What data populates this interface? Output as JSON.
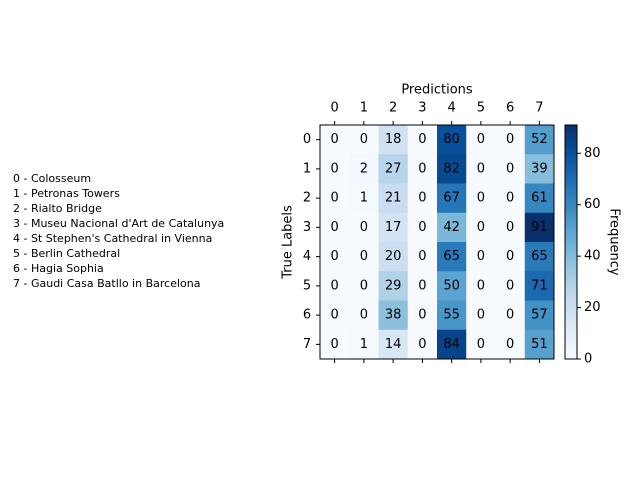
{
  "chart_data": {
    "type": "heatmap",
    "title": "",
    "xlabel": "Predictions",
    "ylabel": "True Labels",
    "x_categories": [
      "0",
      "1",
      "2",
      "3",
      "4",
      "5",
      "6",
      "7"
    ],
    "y_categories": [
      "0",
      "1",
      "2",
      "3",
      "4",
      "5",
      "6",
      "7"
    ],
    "matrix": [
      [
        0,
        0,
        18,
        0,
        80,
        0,
        0,
        52
      ],
      [
        0,
        2,
        27,
        0,
        82,
        0,
        0,
        39
      ],
      [
        0,
        1,
        21,
        0,
        67,
        0,
        0,
        61
      ],
      [
        0,
        0,
        17,
        0,
        42,
        0,
        0,
        91
      ],
      [
        0,
        0,
        20,
        0,
        65,
        0,
        0,
        65
      ],
      [
        0,
        0,
        29,
        0,
        50,
        0,
        0,
        71
      ],
      [
        0,
        0,
        38,
        0,
        55,
        0,
        0,
        57
      ],
      [
        0,
        1,
        14,
        0,
        84,
        0,
        0,
        51
      ]
    ],
    "colormap": "Blues",
    "colorbar": {
      "label": "Frequency",
      "range": [
        0,
        91
      ],
      "ticks": [
        0,
        20,
        40,
        60,
        80
      ]
    },
    "class_legend": [
      "0 - Colosseum",
      "1 - Petronas Towers",
      "2 - Rialto Bridge",
      "3 - Museu Nacional d'Art de Catalunya",
      "4 - St Stephen's Cathedral in Vienna",
      "5 - Berlin Cathedral",
      "6 - Hagia Sophia",
      "7 - Gaudi Casa Batllo in Barcelona"
    ]
  }
}
